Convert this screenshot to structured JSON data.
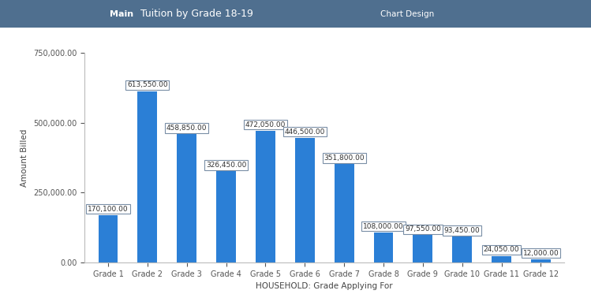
{
  "chart_data": {
    "type": "bar",
    "title": "Tuition by Grade 18-19",
    "annotations": [
      "Main",
      "Chart Design"
    ],
    "x_label": "HOUSEHOLD: Grade Applying For",
    "y_label": "Amount Billed",
    "categories": [
      "Grade 1",
      "Grade 2",
      "Grade 3",
      "Grade 4",
      "Grade 5",
      "Grade 6",
      "Grade 7",
      "Grade 8",
      "Grade 9",
      "Grade 10",
      "Grade 11",
      "Grade 12"
    ],
    "values": [
      170100,
      613550,
      458850,
      326450,
      472050,
      446500,
      351800,
      108000,
      97550,
      93450,
      24050,
      12000
    ],
    "value_labels": [
      "170,100.00",
      "613,550.00",
      "458,850.00",
      "326,450.00",
      "472,050.00",
      "446,500.00",
      "351,800.00",
      "108,000.00",
      "97,550.00",
      "93,450.00",
      "24,050.00",
      "12,000.00"
    ],
    "data_labels": true,
    "color": "#2b7fd6",
    "ylim": [
      0,
      750000
    ],
    "yticks": [
      {
        "value": 0,
        "label": "0.00"
      },
      {
        "value": 250000,
        "label": "250,000.00"
      },
      {
        "value": 500000,
        "label": "500,000.00"
      },
      {
        "value": 750000,
        "label": "750,000.00"
      }
    ],
    "grid": false
  }
}
